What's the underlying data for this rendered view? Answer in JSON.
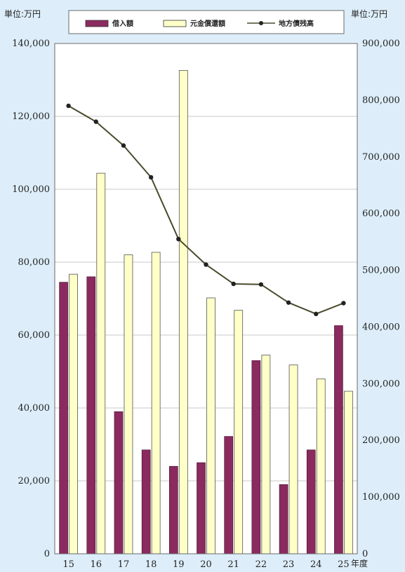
{
  "chart_data": {
    "type": "bar",
    "categories": [
      "15",
      "16",
      "17",
      "18",
      "19",
      "20",
      "21",
      "22",
      "23",
      "24",
      "25"
    ],
    "xlabel": "年度",
    "ylabel_left": "単位:万円",
    "ylabel_right": "単位:万円",
    "ylim_left": [
      0,
      140000
    ],
    "ylim_right": [
      0,
      900000
    ],
    "yticks_left": [
      "0",
      "20,000",
      "40,000",
      "60,000",
      "80,000",
      "100,000",
      "120,000",
      "140,000"
    ],
    "yticks_right": [
      "0",
      "100,000",
      "200,000",
      "300,000",
      "400,000",
      "500,000",
      "600,000",
      "700,000",
      "800,000",
      "900,000"
    ],
    "grid": true,
    "legend_position": "top",
    "series": [
      {
        "name": "借入額",
        "type": "bar",
        "axis": "left",
        "color": "#8b2a5e",
        "values": [
          74500,
          76000,
          39000,
          28500,
          24000,
          25000,
          32200,
          53000,
          19000,
          28500,
          62600
        ]
      },
      {
        "name": "元金償還額",
        "type": "bar",
        "axis": "left",
        "color": "#ffffc8",
        "values": [
          76700,
          104400,
          82000,
          82700,
          132600,
          70200,
          66800,
          54500,
          51800,
          48000,
          44600
        ]
      },
      {
        "name": "地方債残高",
        "type": "line",
        "axis": "right",
        "color": "#4a4a2c",
        "values": [
          790000,
          762000,
          720000,
          664000,
          555000,
          510000,
          476000,
          475000,
          443000,
          423000,
          442000
        ]
      }
    ]
  }
}
